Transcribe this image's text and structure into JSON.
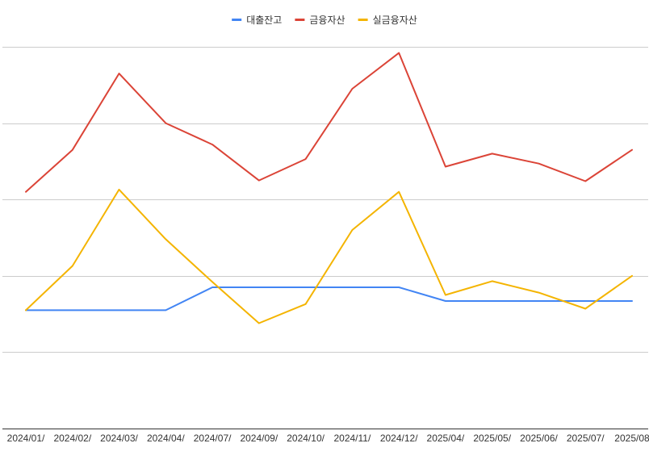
{
  "chart_data": {
    "type": "line",
    "title": "",
    "xlabel": "",
    "ylabel": "",
    "categories": [
      "2024/01/",
      "2024/02/",
      "2024/03/",
      "2024/04/",
      "2024/07/",
      "2024/09/",
      "2024/10/",
      "2024/11/",
      "2024/12/",
      "2025/04/",
      "2025/05/",
      "2025/06/",
      "2025/07/",
      "2025/08"
    ],
    "ylim": [
      0,
      5
    ],
    "y_gridlines": [
      1,
      2,
      3,
      4,
      5
    ],
    "y_tick_labels_visible": false,
    "grid": true,
    "legend_position": "top",
    "series": [
      {
        "name": "대출잔고",
        "color": "#4285F4",
        "values": [
          1.55,
          1.55,
          1.55,
          1.55,
          1.85,
          1.85,
          1.85,
          1.85,
          1.85,
          1.67,
          1.67,
          1.67,
          1.67,
          1.67
        ]
      },
      {
        "name": "금융자산",
        "color": "#DB4437",
        "values": [
          3.1,
          3.65,
          4.65,
          4.0,
          3.72,
          3.25,
          3.53,
          4.45,
          4.92,
          3.43,
          3.6,
          3.47,
          3.24,
          3.65
        ]
      },
      {
        "name": "실금융자산",
        "color": "#F4B400",
        "values": [
          1.55,
          2.13,
          3.13,
          2.48,
          1.92,
          1.38,
          1.63,
          2.6,
          3.1,
          1.75,
          1.93,
          1.78,
          1.57,
          2.0
        ]
      }
    ]
  }
}
